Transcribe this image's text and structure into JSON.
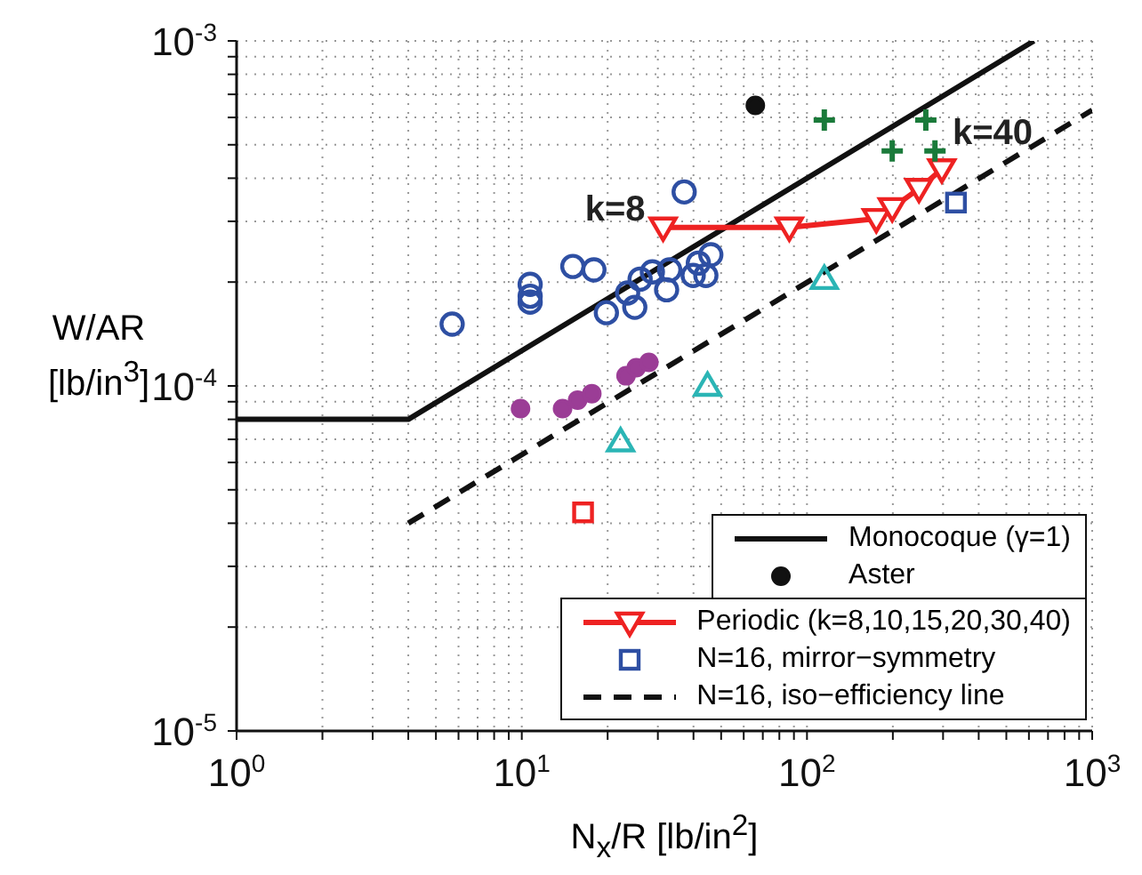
{
  "chart_data": {
    "type": "scatter",
    "xlabel": "N$_{x}$/R [lb/in$^{2}$]",
    "ylabel": "W/AR [lb/in$^{3}$]",
    "log": "xy",
    "grid": true,
    "legend": "bottom right",
    "xlim": [
      1,
      1000
    ],
    "xticks": [
      {
        "value": 1,
        "label": "10$^{0}$"
      },
      {
        "value": 2,
        "label": null
      },
      {
        "value": 3,
        "label": null
      },
      {
        "value": 4,
        "label": null
      },
      {
        "value": 5,
        "label": null
      },
      {
        "value": 6,
        "label": null
      },
      {
        "value": 7,
        "label": null
      },
      {
        "value": 8,
        "label": null
      },
      {
        "value": 9,
        "label": null
      },
      {
        "value": 10,
        "label": "10$^{1}$"
      },
      {
        "value": 20,
        "label": null
      },
      {
        "value": 30,
        "label": null
      },
      {
        "value": 40,
        "label": null
      },
      {
        "value": 50,
        "label": null
      },
      {
        "value": 60,
        "label": null
      },
      {
        "value": 70,
        "label": null
      },
      {
        "value": 80,
        "label": null
      },
      {
        "value": 90,
        "label": null
      },
      {
        "value": 100,
        "label": "10$^{2}$"
      },
      {
        "value": 200,
        "label": null
      },
      {
        "value": 300,
        "label": null
      },
      {
        "value": 400,
        "label": null
      },
      {
        "value": 500,
        "label": null
      },
      {
        "value": 600,
        "label": null
      },
      {
        "value": 700,
        "label": null
      },
      {
        "value": 800,
        "label": null
      },
      {
        "value": 900,
        "label": null
      },
      {
        "value": 1000,
        "label": "10$^{3}$"
      }
    ],
    "ylim": [
      1e-05,
      0.001
    ],
    "yticks": [
      {
        "value": 1e-05,
        "label": "10$^{-5}$"
      },
      {
        "value": 2e-05,
        "label": null
      },
      {
        "value": 3e-05,
        "label": null
      },
      {
        "value": 4e-05,
        "label": null
      },
      {
        "value": 5e-05,
        "label": null
      },
      {
        "value": 6e-05,
        "label": null
      },
      {
        "value": 7e-05,
        "label": null
      },
      {
        "value": 8e-05,
        "label": null
      },
      {
        "value": 9e-05,
        "label": null
      },
      {
        "value": 0.0001,
        "label": "10$^{-4}$"
      },
      {
        "value": 0.0002,
        "label": null
      },
      {
        "value": 0.0003,
        "label": null
      },
      {
        "value": 0.0004,
        "label": null
      },
      {
        "value": 0.0005,
        "label": null
      },
      {
        "value": 0.0006,
        "label": null
      },
      {
        "value": 0.0007,
        "label": null
      },
      {
        "value": 0.0008,
        "label": null
      },
      {
        "value": 0.0009,
        "label": null
      },
      {
        "value": 0.001,
        "label": "10$^{-3}$"
      }
    ],
    "annotations": [
      {
        "text": "k=8",
        "x": 31.3,
        "y": 0.000288
      },
      {
        "text": "k=40",
        "x": 297,
        "y": 0.000425
      }
    ],
    "series": [
      {
        "name": "Monocoque (γ=1)",
        "type": "line",
        "color": "#111111",
        "marker": "none",
        "line_style": "solid",
        "x": [
          1,
          4,
          625
        ],
        "values": [
          8e-05,
          8e-05,
          0.001
        ]
      },
      {
        "name": "Aster",
        "color": "#111111",
        "marker": "circle",
        "x": [
          65.9
        ],
        "values": [
          0.00065
        ]
      },
      {
        "name": "Periodic (k=8,10,15,20,30,40)",
        "type": "line",
        "color": "#ee2222",
        "marker": "triangle-down",
        "line_style": "solid",
        "x": [
          31.3,
          86.7,
          175,
          199,
          247,
          297
        ],
        "values": [
          0.000288,
          0.000288,
          0.000305,
          0.000328,
          0.000373,
          0.000425
        ]
      },
      {
        "name": "N=16, mirror−symmetry",
        "color": "#2e4fa3",
        "marker": "square",
        "x": [
          333
        ],
        "values": [
          0.00034
        ]
      },
      {
        "name": "N=16, iso−efficiency line",
        "type": "line",
        "color": "#111111",
        "marker": "none",
        "line_style": "dashed",
        "x": [
          4,
          1000
        ],
        "values": [
          4e-05,
          0.00063
        ]
      },
      {
        "color": "#2e4fa3",
        "marker": "circle-open",
        "x": [
          5.7,
          10.7,
          10.7,
          10.7,
          15.1,
          17.9,
          19.8,
          24.9,
          23.5,
          28.7,
          32.2,
          33.0,
          37.1,
          39.9,
          41.6,
          46.0,
          44.2,
          26.0
        ],
        "values": [
          0.000151,
          0.000197,
          0.000182,
          0.000175,
          0.000222,
          0.000217,
          0.000163,
          0.000169,
          0.000186,
          0.000214,
          0.00019,
          0.000217,
          0.000365,
          0.000209,
          0.000227,
          0.00024,
          0.000209,
          0.000204
        ]
      },
      {
        "color": "#1a7a3a",
        "marker": "cross",
        "x": [
          115,
          261,
          199,
          281
        ],
        "values": [
          0.00059,
          0.00059,
          0.00048,
          0.00048
        ]
      },
      {
        "color": "#9b3d96",
        "marker": "circle",
        "x": [
          9.9,
          13.9,
          15.7,
          17.6,
          23.2,
          25.2,
          27.9
        ],
        "values": [
          8.6e-05,
          8.6e-05,
          9.1e-05,
          9.5e-05,
          0.000107,
          0.000113,
          0.000117
        ]
      },
      {
        "color": "#2bb5b5",
        "marker": "triangle",
        "x": [
          115,
          44.8,
          22.2
        ],
        "values": [
          0.000204,
          0.0001,
          6.9e-05
        ]
      },
      {
        "color": "#ee2222",
        "marker": "square",
        "x": [
          16.4
        ],
        "values": [
          4.3e-05
        ]
      }
    ]
  }
}
